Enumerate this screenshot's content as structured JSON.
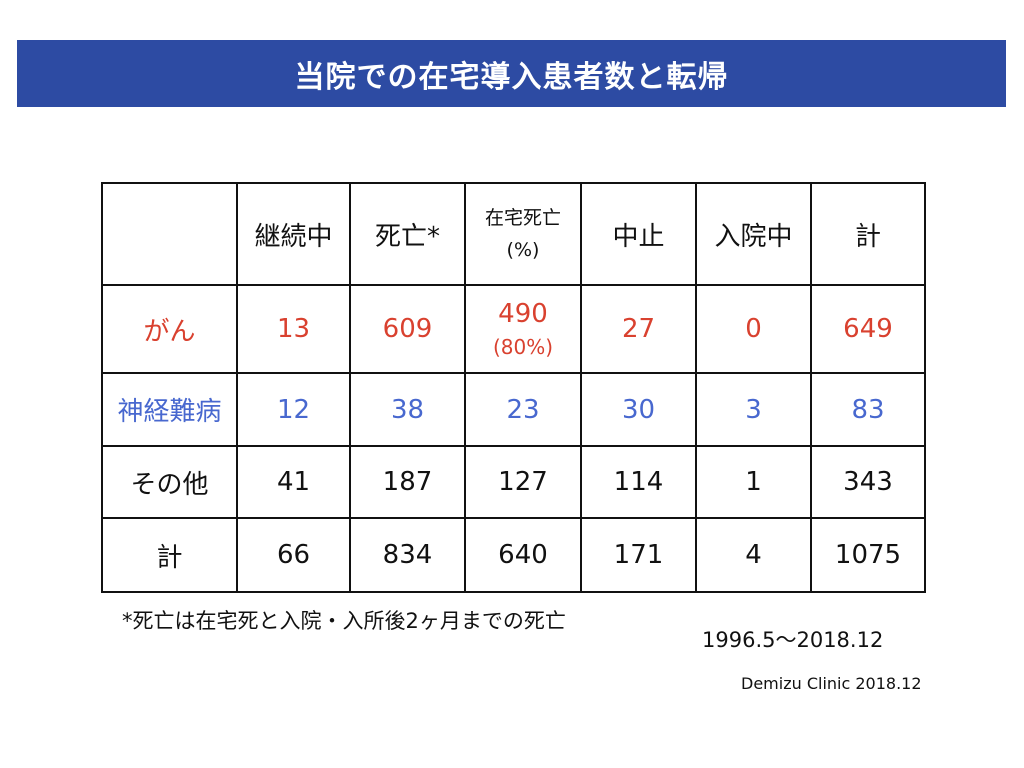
{
  "title": "当院での在宅導入患者数と転帰",
  "colors": {
    "title_bar": "#2d4ba3",
    "cancer_row": "#d9412f",
    "neuro_row": "#4868cf"
  },
  "table": {
    "headers": [
      "",
      "継続中",
      "死亡*",
      "在宅死亡",
      "中止",
      "入院中",
      "計"
    ],
    "header_sub": "(%)",
    "rows": [
      {
        "label": "がん",
        "values": [
          "13",
          "609",
          "490",
          "27",
          "0",
          "649"
        ],
        "pct": "(80%)"
      },
      {
        "label": "神経難病",
        "values": [
          "12",
          "38",
          "23",
          "30",
          "3",
          "83"
        ]
      },
      {
        "label": "その他",
        "values": [
          "41",
          "187",
          "127",
          "114",
          "1",
          "343"
        ]
      },
      {
        "label": "計",
        "values": [
          "66",
          "834",
          "640",
          "171",
          "4",
          "1075"
        ]
      }
    ]
  },
  "footnote": "*死亡は在宅死と入院・入所後2ヶ月までの死亡",
  "period": "1996.5～2018.12",
  "credit": "Demizu Clinic 2018.12"
}
